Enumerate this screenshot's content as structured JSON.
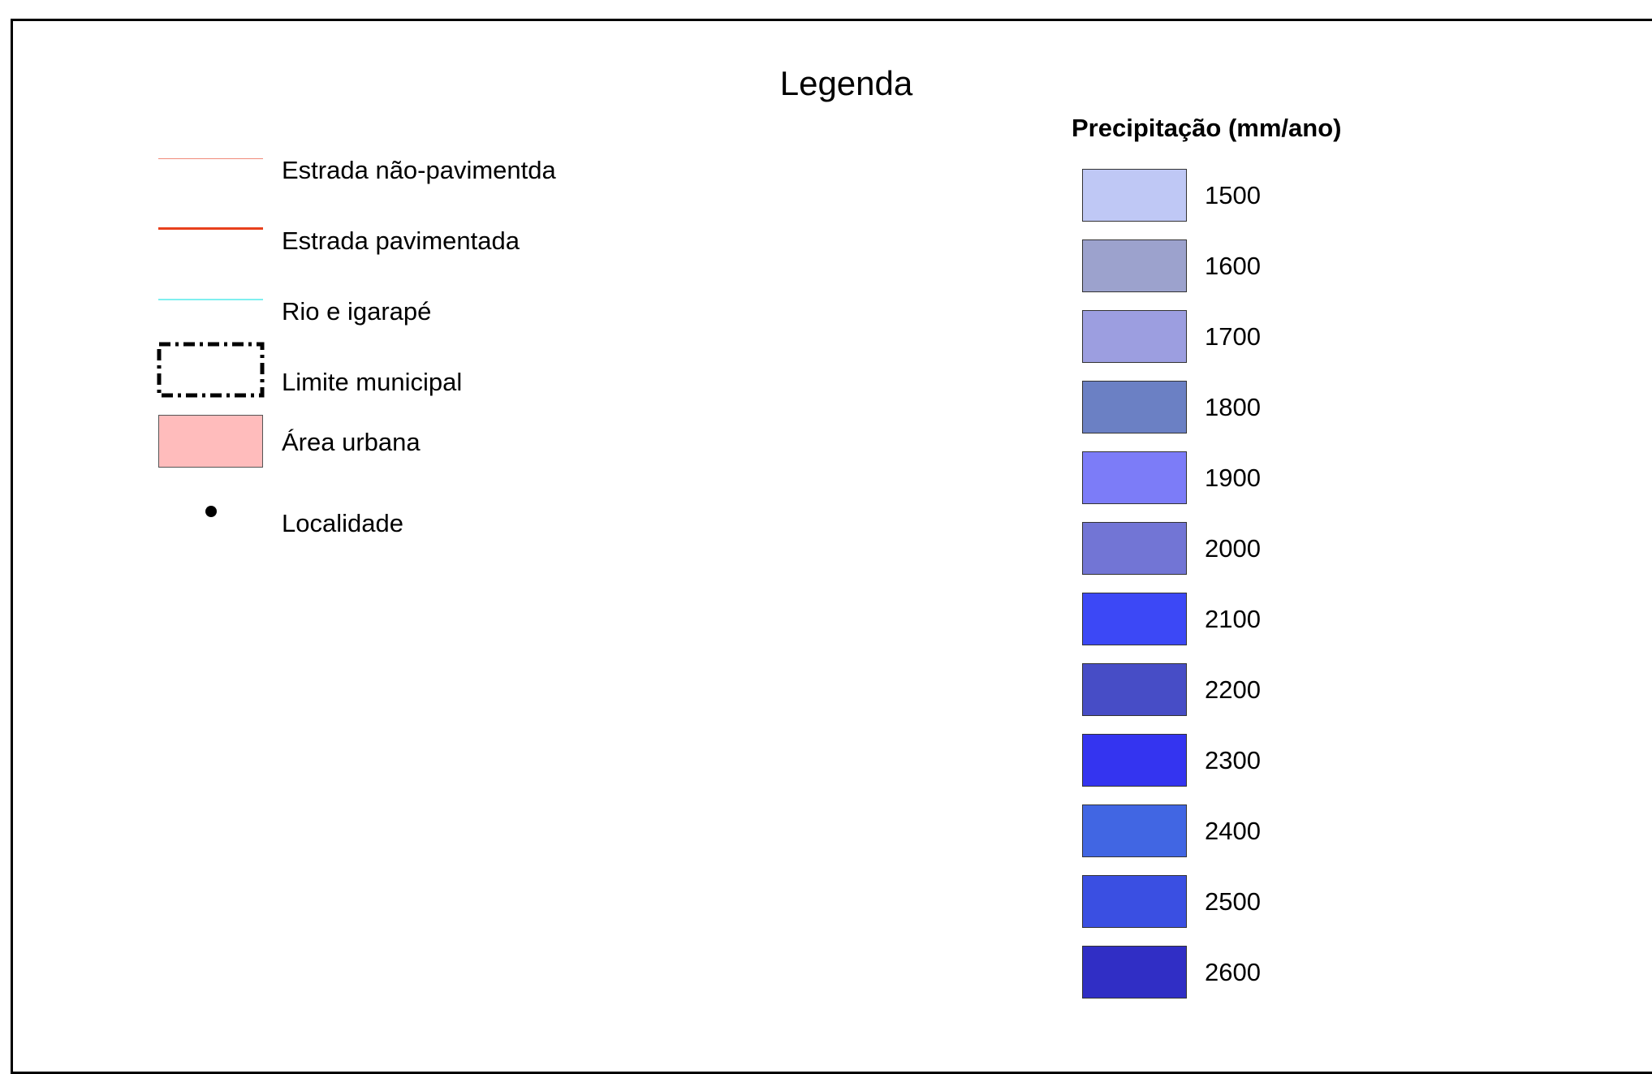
{
  "legend": {
    "title": "Legenda",
    "items": [
      {
        "label": "Estrada não-pavimentda",
        "symbol": "thin-line",
        "color": "#f08a7a"
      },
      {
        "label": "Estrada pavimentada",
        "symbol": "thick-line",
        "color": "#e8401c"
      },
      {
        "label": "Rio e igarapé",
        "symbol": "thin-line",
        "color": "#7ff0f0"
      },
      {
        "label": "Limite municipal",
        "symbol": "dash-dot-rect",
        "color": "#000000"
      },
      {
        "label": "Área urbana",
        "symbol": "filled-rect",
        "color": "#ffbcbc"
      },
      {
        "label": "Localidade",
        "symbol": "dot",
        "color": "#000000"
      }
    ]
  },
  "precipitation": {
    "title": "Precipitação (mm/ano)",
    "classes": [
      {
        "label": "1500",
        "color": "#bfc8f5"
      },
      {
        "label": "1600",
        "color": "#9ca2cd"
      },
      {
        "label": "1700",
        "color": "#9c9ee0"
      },
      {
        "label": "1800",
        "color": "#6b80c4"
      },
      {
        "label": "1900",
        "color": "#7c7cf8"
      },
      {
        "label": "2000",
        "color": "#7275d5"
      },
      {
        "label": "2100",
        "color": "#3c48f6"
      },
      {
        "label": "2200",
        "color": "#474dc6"
      },
      {
        "label": "2300",
        "color": "#3434f0"
      },
      {
        "label": "2400",
        "color": "#4166e3"
      },
      {
        "label": "2500",
        "color": "#3a4fe2"
      },
      {
        "label": "2600",
        "color": "#302ec5"
      }
    ]
  }
}
